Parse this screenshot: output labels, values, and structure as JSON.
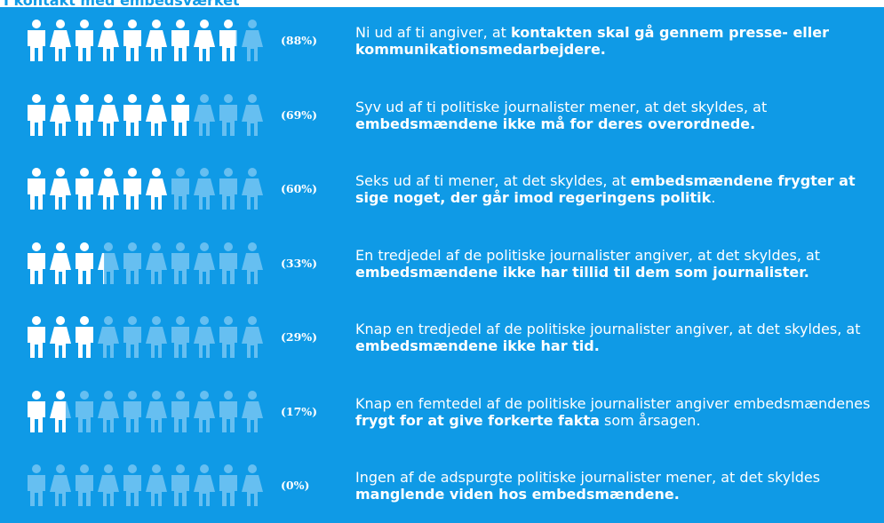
{
  "chart_data": {
    "type": "pictogram",
    "title": "I kontakt med embedsværket",
    "icon_count": 10,
    "colors": {
      "background": "#0f9ae6",
      "filled": "#ffffff",
      "empty": "#66bff1",
      "title": "#0f9ae6"
    },
    "values": [
      88,
      69,
      60,
      33,
      29,
      17,
      0
    ],
    "value_labels": [
      "(88%)",
      "(69%)",
      "(60%)",
      "(33%)",
      "(29%)",
      "(17%)",
      "(0%)"
    ],
    "descriptions": [
      [
        {
          "text": "Ni ud af ti angiver, at ",
          "bold": false
        },
        {
          "text": "kontakten skal gå gennem presse- eller kommunikationsmedarbejdere.",
          "bold": true
        }
      ],
      [
        {
          "text": "Syv ud af ti politiske journalister mener, at det skyldes, at ",
          "bold": false
        },
        {
          "text": "embedsmændene ikke må for deres overordnede.",
          "bold": true
        }
      ],
      [
        {
          "text": "Seks ud af ti mener, at det skyldes, at ",
          "bold": false
        },
        {
          "text": "embedsmændene frygter at sige noget, der går imod regeringens politik",
          "bold": true
        },
        {
          "text": ".",
          "bold": false
        }
      ],
      [
        {
          "text": "En tredjedel af de politiske journalister angiver, at det skyldes, at ",
          "bold": false
        },
        {
          "text": "embedsmændene ikke har tillid til dem som journalister.",
          "bold": true
        }
      ],
      [
        {
          "text": "Knap en tredjedel af de politiske journalister angiver, at det skyldes, at ",
          "bold": false
        },
        {
          "text": "embedsmændene ikke har tid.",
          "bold": true
        }
      ],
      [
        {
          "text": "Knap en femtedel af de politiske journalister angiver embedsmændenes ",
          "bold": false
        },
        {
          "text": "frygt for at give forkerte fakta",
          "bold": true
        },
        {
          "text": " som årsagen.",
          "bold": false
        }
      ],
      [
        {
          "text": "Ingen af de adspurgte politiske journalister mener, at det skyldes ",
          "bold": false
        },
        {
          "text": "manglende viden hos embedsmændene.",
          "bold": true
        }
      ]
    ]
  }
}
